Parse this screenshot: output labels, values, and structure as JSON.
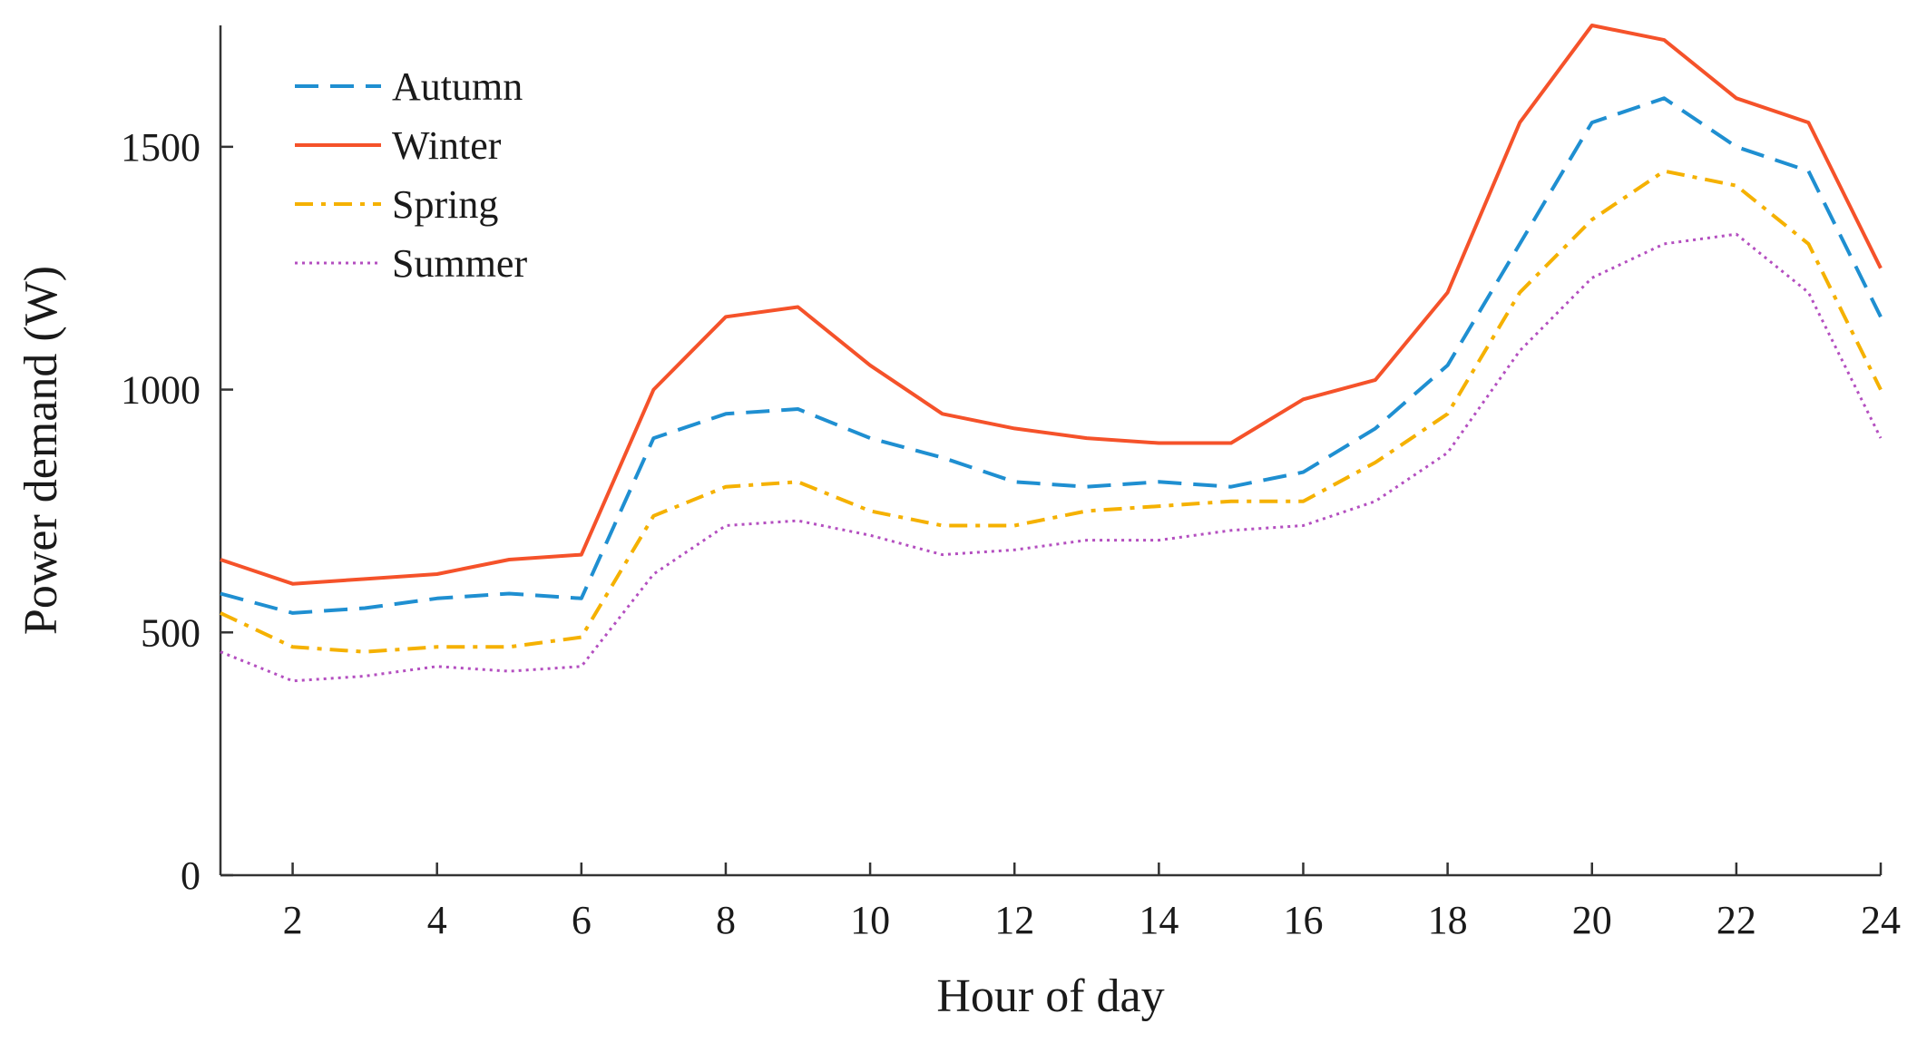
{
  "chart_data": {
    "type": "line",
    "title": "",
    "xlabel": "Hour of day",
    "ylabel": "Power demand (W)",
    "xlim": [
      1,
      24
    ],
    "ylim": [
      0,
      1750
    ],
    "xticks": [
      2,
      4,
      6,
      8,
      10,
      12,
      14,
      16,
      18,
      20,
      22,
      24
    ],
    "yticks": [
      0,
      500,
      1000,
      1500
    ],
    "grid": false,
    "legend_position": "top-left",
    "x": [
      1,
      2,
      3,
      4,
      5,
      6,
      7,
      8,
      9,
      10,
      11,
      12,
      13,
      14,
      15,
      16,
      17,
      18,
      19,
      20,
      21,
      22,
      23,
      24
    ],
    "series": [
      {
        "name": "Autumn",
        "color": "#1f8fd1",
        "style": "dashed",
        "values": [
          580,
          540,
          550,
          570,
          580,
          570,
          900,
          950,
          960,
          900,
          860,
          810,
          800,
          810,
          800,
          830,
          920,
          1050,
          1300,
          1550,
          1600,
          1500,
          1450,
          1150
        ]
      },
      {
        "name": "Winter",
        "color": "#f5522a",
        "style": "solid",
        "values": [
          650,
          600,
          610,
          620,
          650,
          660,
          1000,
          1150,
          1170,
          1050,
          950,
          920,
          900,
          890,
          890,
          980,
          1020,
          1200,
          1550,
          1750,
          1720,
          1600,
          1550,
          1250
        ]
      },
      {
        "name": "Spring",
        "color": "#f5b100",
        "style": "dashdot",
        "values": [
          540,
          470,
          460,
          470,
          470,
          490,
          740,
          800,
          810,
          750,
          720,
          720,
          750,
          760,
          770,
          770,
          850,
          950,
          1200,
          1350,
          1450,
          1420,
          1300,
          1000
        ]
      },
      {
        "name": "Summer",
        "color": "#b44fc0",
        "style": "dotted",
        "values": [
          460,
          400,
          410,
          430,
          420,
          430,
          620,
          720,
          730,
          700,
          660,
          670,
          690,
          690,
          710,
          720,
          770,
          870,
          1080,
          1230,
          1300,
          1320,
          1200,
          900
        ]
      }
    ]
  }
}
